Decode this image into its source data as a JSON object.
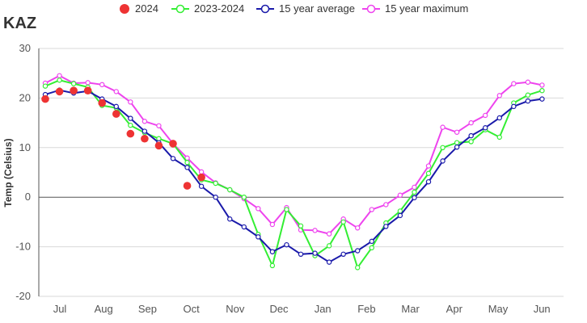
{
  "title": "KAZ",
  "chart_data": {
    "type": "line",
    "ylabel": "Temp (Celsius)",
    "xlabel": "",
    "ylim": [
      -20,
      30
    ],
    "yticks": [
      30,
      20,
      10,
      0,
      -10,
      -20
    ],
    "grid": true,
    "legend_position": "top",
    "x_tick_labels": [
      "Jul",
      "Aug",
      "Sep",
      "Oct",
      "Nov",
      "Dec",
      "Jan",
      "Feb",
      "Mar",
      "Apr",
      "May",
      "Jun"
    ],
    "x_count": 37,
    "series": [
      {
        "name": "2024",
        "style": "dots",
        "color": "#ee3333",
        "x": [
          0,
          1,
          2,
          3,
          4,
          5,
          6,
          7,
          8,
          9,
          10,
          11,
          12
        ],
        "values": [
          19.8,
          21.3,
          21.5,
          21.5,
          19.0,
          16.8,
          12.8,
          11.8,
          10.4,
          10.8,
          2.3,
          4.0,
          null
        ]
      },
      {
        "name": "2023-2024",
        "style": "line",
        "color": "#33ee33",
        "x": [
          0,
          1,
          2,
          3,
          4,
          5,
          6,
          7,
          8,
          9,
          10,
          11,
          12,
          13,
          14,
          15,
          16,
          17,
          18,
          19,
          20,
          21,
          22,
          23,
          24,
          25,
          26,
          27,
          28,
          29,
          30,
          31,
          32,
          33,
          34,
          35,
          36
        ],
        "values": [
          22.4,
          23.6,
          22.9,
          22.2,
          18.5,
          18.0,
          14.5,
          13.0,
          11.8,
          10.8,
          7.0,
          3.5,
          2.8,
          1.5,
          0.0,
          -7.5,
          -13.8,
          -2.5,
          -5.8,
          -11.8,
          -9.8,
          -5.0,
          -14.2,
          -10.2,
          -5.2,
          -2.8,
          1.0,
          4.8,
          10.0,
          11.0,
          11.2,
          13.6,
          12.1,
          19.0,
          20.6,
          21.5,
          null
        ]
      },
      {
        "name": "15 year average",
        "style": "line",
        "color": "#1a1aaa",
        "x": [
          0,
          1,
          2,
          3,
          4,
          5,
          6,
          7,
          8,
          9,
          10,
          11,
          12,
          13,
          14,
          15,
          16,
          17,
          18,
          19,
          20,
          21,
          22,
          23,
          24,
          25,
          26,
          27,
          28,
          29,
          30,
          31,
          32,
          33,
          34,
          35,
          36
        ],
        "values": [
          20.7,
          21.6,
          21.0,
          21.4,
          19.8,
          18.3,
          15.9,
          13.3,
          11.0,
          7.8,
          6.0,
          2.2,
          0.0,
          -4.4,
          -6.0,
          -8.0,
          -11.0,
          -9.6,
          -11.5,
          -11.3,
          -13.1,
          -11.5,
          -10.8,
          -8.9,
          -5.9,
          -3.7,
          -0.1,
          3.1,
          7.3,
          10.1,
          12.4,
          14.0,
          16.0,
          18.3,
          19.4,
          19.8,
          null
        ]
      },
      {
        "name": "15 year maximum",
        "style": "line",
        "color": "#ee44ee",
        "x": [
          0,
          1,
          2,
          3,
          4,
          5,
          6,
          7,
          8,
          9,
          10,
          11,
          12,
          13,
          14,
          15,
          16,
          17,
          18,
          19,
          20,
          21,
          22,
          23,
          24,
          25,
          26,
          27,
          28,
          29,
          30,
          31,
          32,
          33,
          34,
          35,
          36
        ],
        "values": [
          23.0,
          24.5,
          23.0,
          23.1,
          22.7,
          21.3,
          19.2,
          15.3,
          14.4,
          10.8,
          7.9,
          5.1,
          2.9,
          1.5,
          -0.3,
          -2.3,
          -5.5,
          -2.1,
          -6.6,
          -6.7,
          -7.4,
          -4.4,
          -6.2,
          -2.5,
          -1.5,
          0.4,
          2.0,
          6.3,
          14.1,
          13.1,
          15.0,
          16.5,
          20.5,
          22.9,
          23.2,
          22.6,
          null
        ]
      }
    ]
  }
}
